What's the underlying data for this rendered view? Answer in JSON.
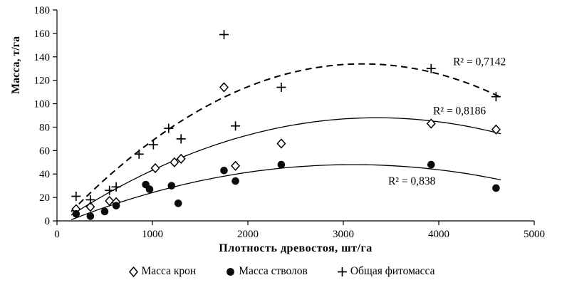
{
  "chart_data": {
    "type": "scatter",
    "title": "",
    "xlabel": "Плотность древостоя,  шт/га",
    "ylabel": "Масса, т/га",
    "xlim": [
      0,
      5000
    ],
    "ylim": [
      0,
      180
    ],
    "x_ticks": [
      0,
      1000,
      2000,
      3000,
      4000,
      5000
    ],
    "y_ticks": [
      0,
      20,
      40,
      60,
      80,
      100,
      120,
      140,
      160,
      180
    ],
    "grid": false,
    "legend_position": "bottom",
    "series": [
      {
        "name": "Масса крон",
        "marker": "diamond-open",
        "points": [
          [
            200,
            10
          ],
          [
            350,
            12
          ],
          [
            550,
            17
          ],
          [
            620,
            16
          ],
          [
            1030,
            45
          ],
          [
            1230,
            50
          ],
          [
            1300,
            53
          ],
          [
            1750,
            114
          ],
          [
            1870,
            47
          ],
          [
            2350,
            66
          ],
          [
            3920,
            83
          ],
          [
            4600,
            78
          ]
        ],
        "trend": {
          "type": "quadratic",
          "start": [
            150,
            5
          ],
          "peak": [
            3350,
            88
          ],
          "end": [
            4650,
            77
          ],
          "dashed": false
        },
        "r2_label": "R² = 0,8186",
        "r2_pos": [
          3940,
          91
        ]
      },
      {
        "name": "Масса стволов",
        "marker": "circle-filled",
        "points": [
          [
            200,
            6
          ],
          [
            350,
            4
          ],
          [
            500,
            8
          ],
          [
            620,
            13
          ],
          [
            930,
            31
          ],
          [
            970,
            27
          ],
          [
            1200,
            30
          ],
          [
            1270,
            15
          ],
          [
            1750,
            43
          ],
          [
            1870,
            34
          ],
          [
            2350,
            48
          ],
          [
            3920,
            48
          ],
          [
            4600,
            28
          ]
        ],
        "trend": {
          "type": "quadratic",
          "start": [
            150,
            1
          ],
          "peak": [
            3100,
            48
          ],
          "end": [
            4650,
            31
          ],
          "dashed": false
        },
        "r2_label": "R² = 0,838",
        "r2_pos": [
          3470,
          31
        ]
      },
      {
        "name": "Общая фитомасса",
        "marker": "plus",
        "points": [
          [
            200,
            21
          ],
          [
            350,
            18
          ],
          [
            550,
            26
          ],
          [
            620,
            29
          ],
          [
            860,
            57
          ],
          [
            1010,
            65
          ],
          [
            1170,
            79
          ],
          [
            1300,
            70
          ],
          [
            1750,
            159
          ],
          [
            1870,
            81
          ],
          [
            2350,
            114
          ],
          [
            3920,
            130
          ],
          [
            4600,
            106
          ]
        ],
        "trend": {
          "type": "quadratic",
          "start": [
            150,
            8
          ],
          "peak": [
            3200,
            134
          ],
          "end": [
            4650,
            106
          ],
          "dashed": true
        },
        "r2_label": "R² = 0,7142",
        "r2_pos": [
          4150,
          133
        ]
      }
    ]
  }
}
